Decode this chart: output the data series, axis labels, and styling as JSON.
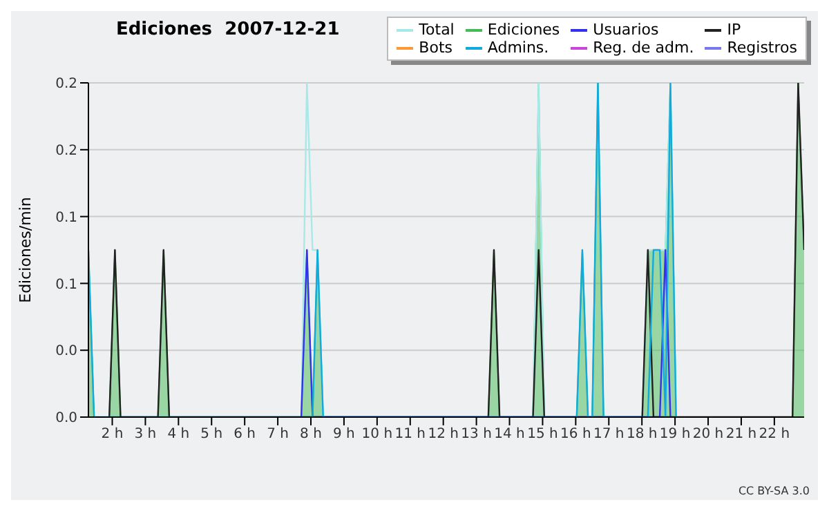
{
  "chart_data": {
    "type": "line",
    "title": "Ediciones  2007-12-21",
    "ylabel": "Ediciones/min",
    "annotations": [
      "CC BY-SA 3.0"
    ],
    "x": [
      1.28,
      1.45,
      1.91,
      2.08,
      2.25,
      3.38,
      3.55,
      3.72,
      7.71,
      7.88,
      8.05,
      8.2,
      8.37,
      13.36,
      13.53,
      13.7,
      14.71,
      14.88,
      15.05,
      16.03,
      16.2,
      16.37,
      16.5,
      16.67,
      16.84,
      18.01,
      18.18,
      18.35,
      18.54,
      18.71,
      18.86,
      19.03,
      22.55,
      22.72,
      22.9
    ],
    "xlim": [
      1.28,
      22.9
    ],
    "xticks": [
      {
        "value": 2,
        "label": "2 h"
      },
      {
        "value": 3,
        "label": "3 h"
      },
      {
        "value": 4,
        "label": "4 h"
      },
      {
        "value": 5,
        "label": "5 h"
      },
      {
        "value": 6,
        "label": "6 h"
      },
      {
        "value": 7,
        "label": "7 h"
      },
      {
        "value": 8,
        "label": "8 h"
      },
      {
        "value": 9,
        "label": "9 h"
      },
      {
        "value": 10,
        "label": "10 h"
      },
      {
        "value": 11,
        "label": "11 h"
      },
      {
        "value": 12,
        "label": "12 h"
      },
      {
        "value": 13,
        "label": "13 h"
      },
      {
        "value": 14,
        "label": "14 h"
      },
      {
        "value": 15,
        "label": "15 h"
      },
      {
        "value": 16,
        "label": "16 h"
      },
      {
        "value": 17,
        "label": "17 h"
      },
      {
        "value": 18,
        "label": "18 h"
      },
      {
        "value": 19,
        "label": "19 h"
      },
      {
        "value": 20,
        "label": "20 h"
      },
      {
        "value": 21,
        "label": "21 h"
      },
      {
        "value": 22,
        "label": "22 h"
      }
    ],
    "ylim": [
      0,
      0.2
    ],
    "yticks": [
      {
        "value": 0,
        "label": "0.0"
      },
      {
        "value": 0.04,
        "label": "0.0"
      },
      {
        "value": 0.08,
        "label": "0.1"
      },
      {
        "value": 0.12,
        "label": "0.1"
      },
      {
        "value": 0.16,
        "label": "0.2"
      },
      {
        "value": 0.2,
        "label": "0.2"
      }
    ],
    "grid": "y",
    "legend": "top right",
    "marker": "none",
    "line_style": "solid",
    "series": [
      {
        "name": "Total",
        "color": "#a8e8e8",
        "values": [
          null,
          null,
          null,
          null,
          null,
          null,
          null,
          null,
          0,
          0.2,
          0.1,
          0.1,
          0,
          null,
          null,
          null,
          0,
          0.2,
          0,
          null,
          null,
          null,
          null,
          null,
          null,
          0,
          0.1,
          0.1,
          0.1,
          0.1,
          0.2,
          0,
          null,
          null,
          null
        ]
      },
      {
        "name": "Ediciones",
        "type": "area",
        "color": "#44bb55",
        "values": [
          0.1,
          0,
          0,
          0.1,
          0,
          0,
          0.1,
          0,
          0,
          0.1,
          0,
          0.1,
          0,
          0,
          0.1,
          0,
          0,
          0.2,
          0,
          0,
          0.1,
          0,
          0,
          0.2,
          0,
          0,
          0.1,
          0.1,
          0.1,
          0.1,
          0.2,
          0,
          0,
          0.2,
          0.1
        ]
      },
      {
        "name": "Usuarios",
        "color": "#3333ee",
        "values": [
          null,
          null,
          null,
          null,
          null,
          null,
          null,
          null,
          0,
          0.1,
          0,
          null,
          null,
          null,
          null,
          null,
          null,
          null,
          null,
          null,
          null,
          null,
          null,
          null,
          null,
          null,
          null,
          null,
          0,
          0.1,
          0,
          null,
          null,
          null,
          null
        ]
      },
      {
        "name": "IP",
        "color": "#222222",
        "values": [
          null,
          null,
          0,
          0.1,
          0,
          0,
          0.1,
          0,
          null,
          null,
          null,
          null,
          null,
          0,
          0.1,
          0,
          0,
          0.1,
          0,
          null,
          null,
          null,
          null,
          null,
          null,
          0,
          0.1,
          0,
          null,
          null,
          null,
          null,
          0,
          0.2,
          0.1
        ]
      },
      {
        "name": "Bots",
        "color": "#ff9933",
        "values": [
          null,
          null,
          null,
          null,
          null,
          null,
          null,
          null,
          null,
          null,
          null,
          null,
          null,
          null,
          null,
          null,
          null,
          null,
          null,
          null,
          null,
          null,
          null,
          null,
          null,
          null,
          null,
          null,
          null,
          null,
          null,
          null,
          null,
          null,
          null
        ]
      },
      {
        "name": "Admins.",
        "color": "#11aadd",
        "values": [
          0.1,
          0,
          null,
          null,
          null,
          null,
          null,
          null,
          null,
          null,
          0,
          0.1,
          0,
          null,
          null,
          null,
          null,
          null,
          null,
          0,
          0.1,
          0,
          0,
          0.2,
          0,
          null,
          0,
          0.1,
          0.1,
          0,
          0.2,
          0,
          null,
          null,
          null
        ]
      },
      {
        "name": "Reg. de adm.",
        "color": "#cc44dd",
        "values": [
          null,
          null,
          null,
          null,
          null,
          null,
          null,
          null,
          null,
          null,
          null,
          null,
          null,
          null,
          null,
          null,
          null,
          null,
          null,
          null,
          null,
          null,
          null,
          null,
          null,
          null,
          null,
          null,
          null,
          null,
          null,
          null,
          null,
          null,
          null
        ]
      },
      {
        "name": "Registros",
        "color": "#7777ee",
        "values": [
          null,
          null,
          null,
          null,
          null,
          null,
          null,
          null,
          null,
          null,
          null,
          null,
          null,
          null,
          null,
          null,
          null,
          null,
          null,
          null,
          null,
          null,
          null,
          null,
          null,
          null,
          null,
          null,
          null,
          null,
          null,
          null,
          null,
          null,
          null
        ]
      }
    ]
  }
}
